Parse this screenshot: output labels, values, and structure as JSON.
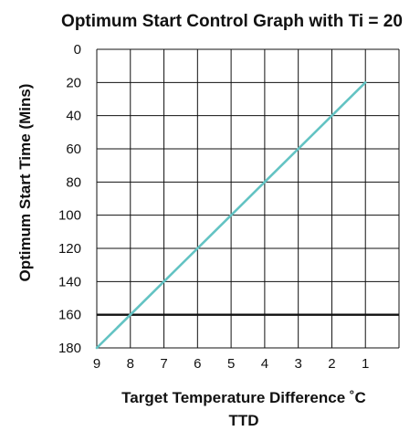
{
  "chart_data": {
    "type": "line",
    "title": "Optimum Start Control Graph with Ti = 20",
    "xlabel_line1": "Target Temperature Difference ˚C",
    "xlabel_line2": "TTD",
    "ylabel": "Optimum Start Time (Mins)",
    "x_ticks": [
      "9",
      "8",
      "7",
      "6",
      "5",
      "4",
      "3",
      "2",
      "1"
    ],
    "y_ticks": [
      "0",
      "20",
      "40",
      "60",
      "80",
      "100",
      "120",
      "140",
      "160",
      "180"
    ],
    "xlim": [
      9,
      1
    ],
    "ylim": [
      0,
      180
    ],
    "y_inverted": true,
    "x_reversed": true,
    "grid": true,
    "highlight_gridline_y": 160,
    "series": [
      {
        "x": [
          9,
          8,
          7,
          6,
          5,
          4,
          3,
          2,
          1
        ],
        "y": [
          180,
          160,
          140,
          120,
          100,
          80,
          60,
          40,
          20
        ]
      }
    ],
    "colors": {
      "series": "#63c3c3",
      "grid": "#111111",
      "background": "#ffffff"
    }
  }
}
